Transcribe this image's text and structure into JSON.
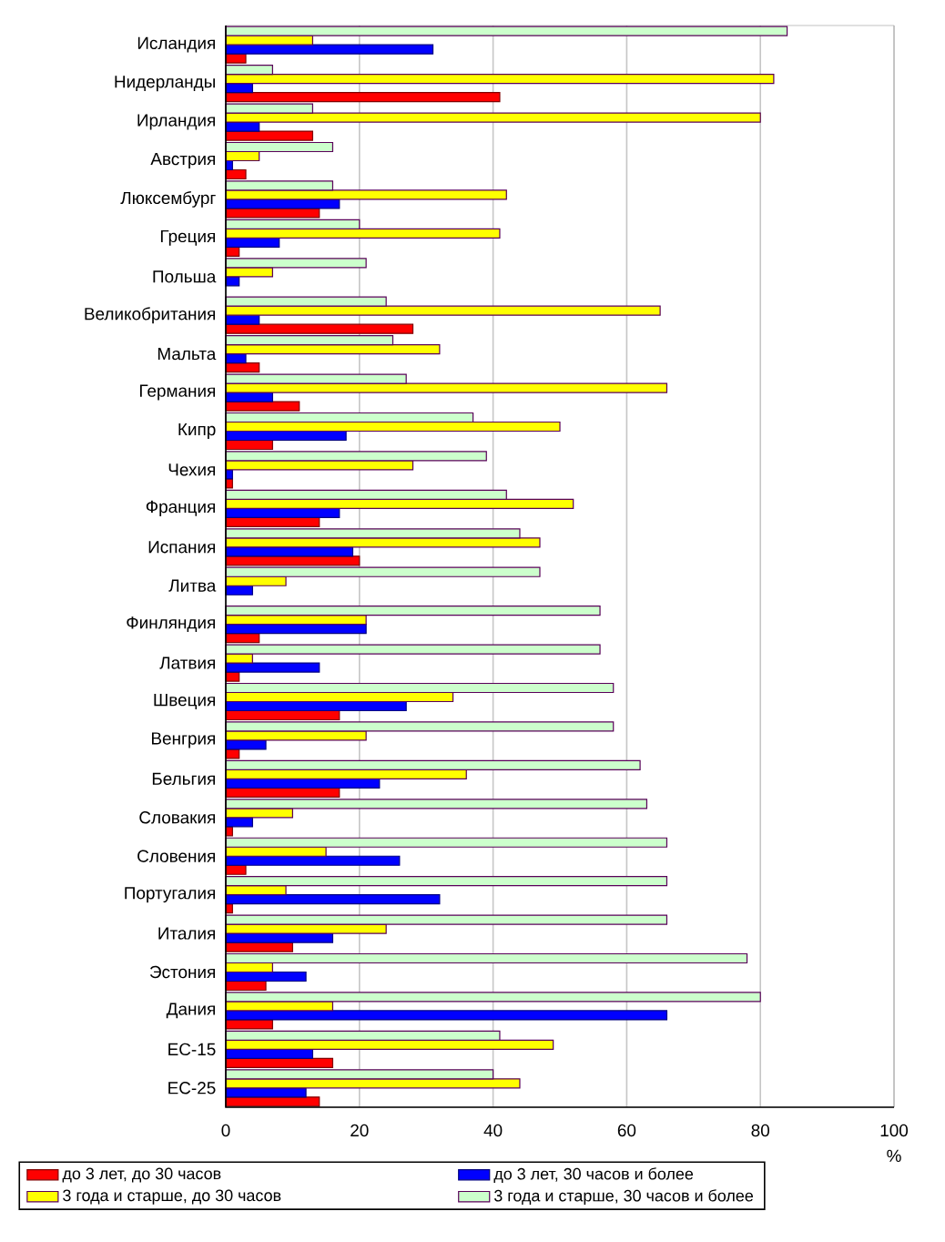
{
  "chart_data": {
    "type": "bar",
    "orientation": "horizontal",
    "xlabel": "%",
    "categories": [
      "Исландия",
      "Нидерланды",
      "Ирландия",
      "Австрия",
      "Люксембург",
      "Греция",
      "Польша",
      "Великобритания",
      "Мальта",
      "Германия",
      "Кипр",
      "Чехия",
      "Франция",
      "Испания",
      "Литва",
      "Финляндия",
      "Латвия",
      "Швеция",
      "Венгрия",
      "Бельгия",
      "Словакия",
      "Словения",
      "Португалия",
      "Италия",
      "Эстония",
      "Дания",
      "ЕС-15",
      "ЕС-25"
    ],
    "series": [
      {
        "name": "до 3 лет, до 30 часов",
        "color": "#ff0000",
        "values": [
          3,
          41,
          13,
          3,
          14,
          2,
          null,
          28,
          5,
          11,
          7,
          1,
          14,
          20,
          null,
          5,
          2,
          17,
          2,
          17,
          1,
          3,
          1,
          10,
          6,
          7,
          16,
          14
        ]
      },
      {
        "name": "до 3 лет, 30 часов и более",
        "color": "#0000ff",
        "values": [
          31,
          4,
          5,
          1,
          17,
          8,
          2,
          5,
          3,
          7,
          18,
          1,
          17,
          19,
          4,
          21,
          14,
          27,
          6,
          23,
          4,
          26,
          32,
          16,
          12,
          66,
          13,
          12
        ]
      },
      {
        "name": "3 года и старше, до 30 часов",
        "color": "#ffff00",
        "values": [
          13,
          82,
          80,
          5,
          42,
          41,
          7,
          65,
          32,
          66,
          50,
          28,
          52,
          47,
          9,
          21,
          4,
          34,
          21,
          36,
          10,
          15,
          9,
          24,
          7,
          16,
          49,
          44
        ]
      },
      {
        "name": "3 года и старше, 30 часов и более",
        "color": "#ccffcc",
        "values": [
          84,
          7,
          13,
          16,
          16,
          20,
          21,
          24,
          25,
          27,
          37,
          39,
          42,
          44,
          47,
          56,
          56,
          58,
          58,
          62,
          63,
          66,
          66,
          66,
          78,
          80,
          41,
          40
        ]
      }
    ],
    "xlim": [
      0,
      100
    ],
    "xticks": [
      0,
      20,
      40,
      60,
      80,
      100
    ],
    "grid": "x",
    "legend": "bottom"
  }
}
